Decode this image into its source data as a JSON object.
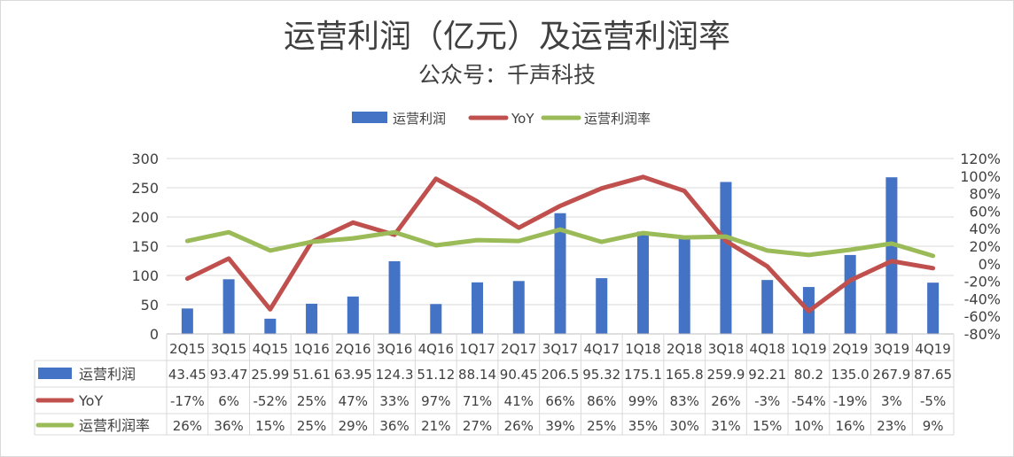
{
  "chart_data": {
    "type": "bar+line",
    "title": "运营利润（亿元）及运营利润率",
    "subtitle": "公众号：千声科技",
    "categories": [
      "2Q15",
      "3Q15",
      "4Q15",
      "1Q16",
      "2Q16",
      "3Q16",
      "4Q16",
      "1Q17",
      "2Q17",
      "3Q17",
      "4Q17",
      "1Q18",
      "2Q18",
      "3Q18",
      "4Q18",
      "1Q19",
      "2Q19",
      "3Q19",
      "4Q19"
    ],
    "series": [
      {
        "name": "运营利润",
        "type": "bar",
        "axis": "left",
        "color": "#4472C4",
        "values": [
          43.45,
          93.47,
          25.99,
          51.61,
          63.95,
          124.3,
          51.12,
          88.14,
          90.45,
          206.5,
          95.32,
          175.1,
          165.8,
          259.9,
          92.21,
          80.2,
          135.0,
          267.9,
          87.65
        ],
        "labels": [
          "43.45",
          "93.47",
          "25.99",
          "51.61",
          "63.95",
          "124.3",
          "51.12",
          "88.14",
          "90.45",
          "206.5",
          "95.32",
          "175.1",
          "165.8",
          "259.9",
          "92.21",
          "80.2",
          "135.0",
          "267.9",
          "87.65"
        ]
      },
      {
        "name": "YoY",
        "type": "line",
        "axis": "right",
        "color": "#C0504D",
        "values": [
          -17,
          6,
          -52,
          25,
          47,
          33,
          97,
          71,
          41,
          66,
          86,
          99,
          83,
          26,
          -3,
          -54,
          -19,
          3,
          -5
        ],
        "labels": [
          "-17%",
          "6%",
          "-52%",
          "25%",
          "47%",
          "33%",
          "97%",
          "71%",
          "41%",
          "66%",
          "86%",
          "99%",
          "83%",
          "26%",
          "-3%",
          "-54%",
          "-19%",
          "3%",
          "-5%"
        ]
      },
      {
        "name": "运营利润率",
        "type": "line",
        "axis": "right",
        "color": "#9BBB59",
        "values": [
          26,
          36,
          15,
          25,
          29,
          36,
          21,
          27,
          26,
          39,
          25,
          35,
          30,
          31,
          15,
          10,
          16,
          23,
          9
        ],
        "labels": [
          "26%",
          "36%",
          "15%",
          "25%",
          "29%",
          "36%",
          "21%",
          "27%",
          "26%",
          "39%",
          "25%",
          "35%",
          "30%",
          "31%",
          "15%",
          "10%",
          "16%",
          "23%",
          "9%"
        ]
      }
    ],
    "y_left": {
      "min": 0,
      "max": 300,
      "ticks": [
        "0",
        "50",
        "100",
        "150",
        "200",
        "250",
        "300"
      ]
    },
    "y_right": {
      "min": -80,
      "max": 120,
      "ticks": [
        "-80%",
        "-60%",
        "-40%",
        "-20%",
        "0%",
        "20%",
        "40%",
        "60%",
        "80%",
        "100%",
        "120%"
      ]
    },
    "legend": {
      "position": "top",
      "entries": [
        "运营利润",
        "YoY",
        "运营利润率"
      ]
    }
  }
}
